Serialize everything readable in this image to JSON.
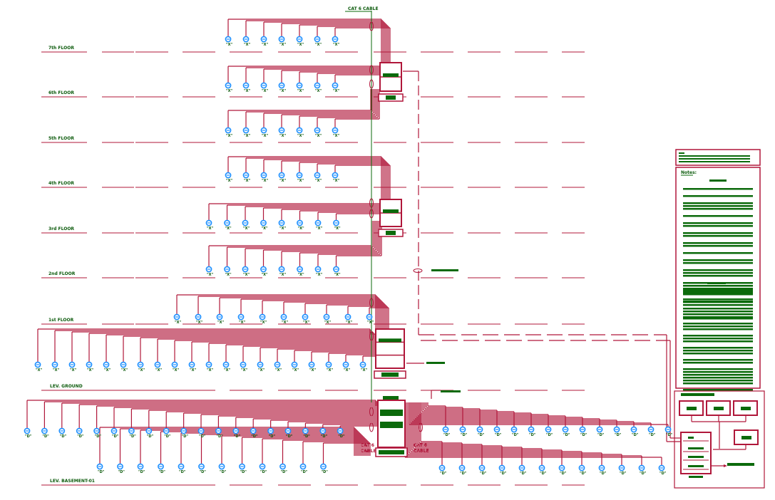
{
  "colors": {
    "cable": "#b0173a",
    "riser": "#0b6a0b",
    "outlet": "#1e90ff",
    "text": "#0b5a0b",
    "background": "#ffffff"
  },
  "cable_label": "CAT 6 CABLE",
  "cable_label_lines": [
    "CAT 6",
    "CABLE"
  ],
  "floors": [
    {
      "label": "7th FLOOR"
    },
    {
      "label": "6th FLOOR"
    },
    {
      "label": "5th FLOOR"
    },
    {
      "label": "4th FLOOR"
    },
    {
      "label": "3rd FLOOR"
    },
    {
      "label": "2nd FLOOR"
    },
    {
      "label": "1st FLOOR"
    },
    {
      "label": "LEV. GROUND"
    },
    {
      "label": "LEV. BASEMENT-01"
    }
  ],
  "outlet_labels": {
    "upper": "\"X\"",
    "basement": "\"D\""
  },
  "notes": {
    "title": "Notes:"
  },
  "icons": {
    "outlet": "data-outlet-icon",
    "rack": "network-rack-icon"
  }
}
